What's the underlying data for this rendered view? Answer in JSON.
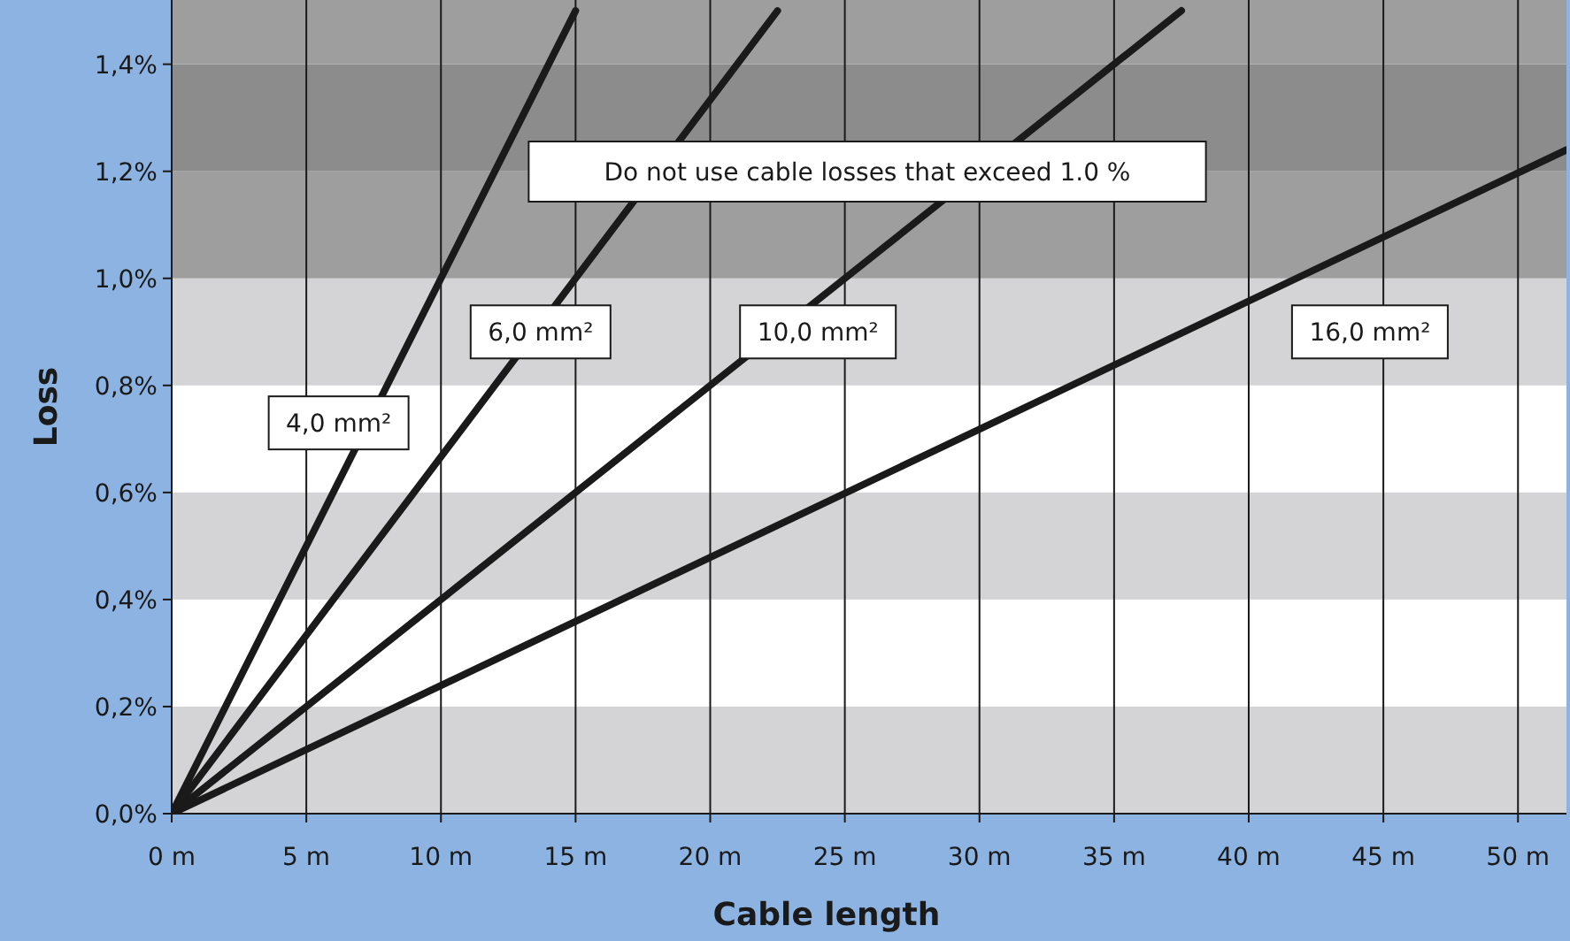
{
  "chart_data": {
    "type": "line",
    "xlabel": "Cable length",
    "ylabel": "Loss",
    "xlim": [
      0,
      51.8
    ],
    "ylim": [
      0,
      1.52
    ],
    "xticks": [
      {
        "value": 0,
        "label": "0 m"
      },
      {
        "value": 5,
        "label": "5 m"
      },
      {
        "value": 10,
        "label": "10 m"
      },
      {
        "value": 15,
        "label": "15 m"
      },
      {
        "value": 20,
        "label": "20 m"
      },
      {
        "value": 25,
        "label": "25 m"
      },
      {
        "value": 30,
        "label": "30 m"
      },
      {
        "value": 35,
        "label": "35 m"
      },
      {
        "value": 40,
        "label": "40 m"
      },
      {
        "value": 45,
        "label": "45 m"
      },
      {
        "value": 50,
        "label": "50 m"
      }
    ],
    "yticks": [
      {
        "value": 0,
        "label": "0,0%"
      },
      {
        "value": 0.2,
        "label": "0,2%"
      },
      {
        "value": 0.4,
        "label": "0,4%"
      },
      {
        "value": 0.6,
        "label": "0,6%"
      },
      {
        "value": 0.8,
        "label": "0,8%"
      },
      {
        "value": 1.0,
        "label": "1,0%"
      },
      {
        "value": 1.2,
        "label": "1,2%"
      },
      {
        "value": 1.4,
        "label": "1,4%"
      }
    ],
    "grid": "x",
    "marker": "none",
    "line_style": "solid",
    "bands": [
      {
        "axis": "y",
        "from": 0,
        "to": 0.2,
        "color": "#d4d4d6"
      },
      {
        "axis": "y",
        "from": 0.4,
        "to": 0.6,
        "color": "#d4d4d6"
      },
      {
        "axis": "y",
        "from": 0.8,
        "to": 1.0,
        "color": "#d4d4d6"
      },
      {
        "axis": "y",
        "from": 1.0,
        "to": 1.2,
        "color": "#9e9e9e"
      },
      {
        "axis": "y",
        "from": 1.2,
        "to": 1.4,
        "color": "#8c8c8c"
      },
      {
        "axis": "y",
        "from": 1.4,
        "to": 1.52,
        "color": "#9e9e9e"
      }
    ],
    "annotations": [
      "Do not use cable losses that exceed 1.0 %"
    ],
    "series": [
      {
        "name": "4,0 mm²",
        "color": "#1a1a1a",
        "x": [
          0,
          15
        ],
        "values": [
          0,
          1.5
        ]
      },
      {
        "name": "6,0 mm²",
        "color": "#1a1a1a",
        "x": [
          0,
          22.5
        ],
        "values": [
          0,
          1.5
        ]
      },
      {
        "name": "10,0 mm²",
        "color": "#1a1a1a",
        "x": [
          0,
          37.5
        ],
        "values": [
          0,
          1.5
        ]
      },
      {
        "name": "16,0 mm²",
        "color": "#1a1a1a",
        "x": [
          0,
          51.8
        ],
        "values": [
          0,
          1.24
        ]
      }
    ]
  }
}
